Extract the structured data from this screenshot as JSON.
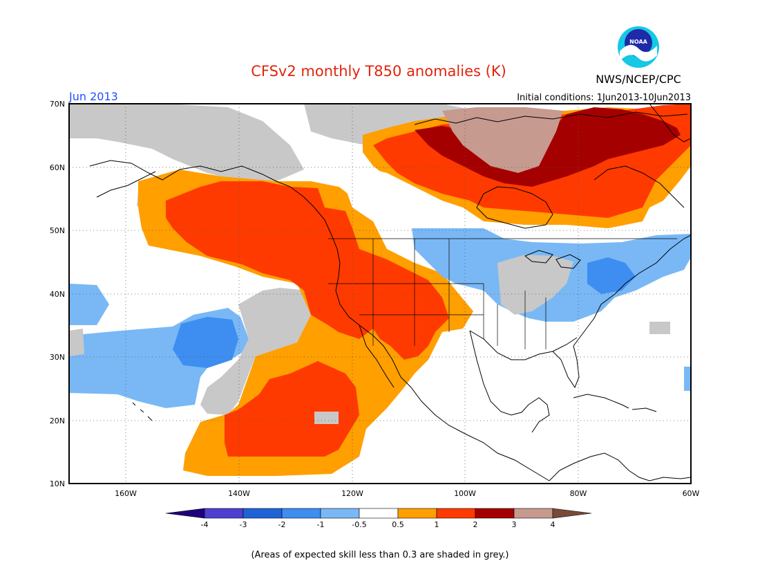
{
  "title": "CFSv2 monthly T850 anomalies (K)",
  "valid_month": "Jun 2013",
  "initial_conditions": "Initial conditions: 1Jun2013-10Jun2013",
  "agency": "NWS/NCEP/CPC",
  "logo_text": "NOAA",
  "footnote": "(Areas of expected skill less than 0.3 are shaded in grey.)",
  "lat_labels": [
    "70N",
    "60N",
    "50N",
    "40N",
    "30N",
    "20N",
    "10N"
  ],
  "lon_labels": [
    "160W",
    "140W",
    "120W",
    "100W",
    "80W",
    "60W"
  ],
  "colorbar": {
    "tick_labels": [
      "-4",
      "-3",
      "-2",
      "-1",
      "-0.5",
      "0.5",
      "1",
      "2",
      "3",
      "4"
    ],
    "colors": [
      "#1f007a",
      "#4f3fd0",
      "#1f64d6",
      "#3d8ef0",
      "#79b8f5",
      "#ffffff",
      "#ff9f00",
      "#ff3a00",
      "#a50000",
      "#c79a8f",
      "#7a4a38"
    ],
    "unit": "K"
  },
  "colors": {
    "title": "#e0250d",
    "month": "#1e50ff",
    "skill_grey": "#c8c8c8"
  }
}
